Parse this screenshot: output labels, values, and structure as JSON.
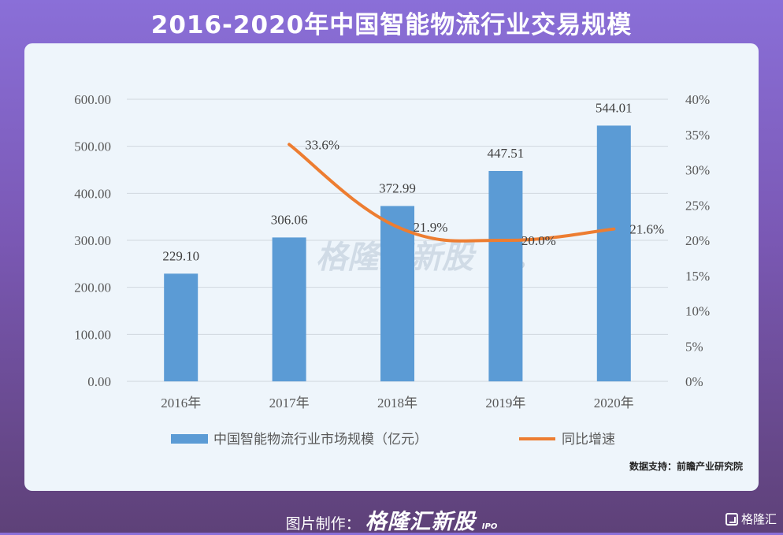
{
  "title": "2016-2020年中国智能物流行业交易规模",
  "source": "数据支持：前瞻产业研究院",
  "footer": {
    "label": "图片制作：",
    "brand": "格隆汇新股",
    "brand_suffix": "IPO"
  },
  "corner_logo": "格隆汇",
  "watermark": {
    "text": "格隆汇新股",
    "suffix": "IPO"
  },
  "colors": {
    "bar": "#5b9bd5",
    "line": "#ed7d31",
    "grid": "#d0d7de",
    "text": "#595959"
  },
  "chart_data": {
    "type": "bar",
    "categories": [
      "2016年",
      "2017年",
      "2018年",
      "2019年",
      "2020年"
    ],
    "series": [
      {
        "name": "中国智能物流行业市场规模（亿元）",
        "type": "bar",
        "axis": "left",
        "values": [
          229.1,
          306.06,
          372.99,
          447.51,
          544.01
        ],
        "labels": [
          "229.10",
          "306.06",
          "372.99",
          "447.51",
          "544.01"
        ]
      },
      {
        "name": "同比增速",
        "type": "line",
        "axis": "right",
        "values": [
          null,
          33.6,
          21.9,
          20.0,
          21.6
        ],
        "labels": [
          "",
          "33.6%",
          "21.9%",
          "20.0%",
          "21.6%"
        ]
      }
    ],
    "y_left": {
      "min": 0,
      "max": 600,
      "ticks": [
        "0.00",
        "100.00",
        "200.00",
        "300.00",
        "400.00",
        "500.00",
        "600.00"
      ]
    },
    "y_right": {
      "min": 0,
      "max": 40,
      "ticks": [
        "0%",
        "5%",
        "10%",
        "15%",
        "20%",
        "25%",
        "30%",
        "35%",
        "40%"
      ]
    },
    "grid": true,
    "legend_position": "bottom"
  }
}
